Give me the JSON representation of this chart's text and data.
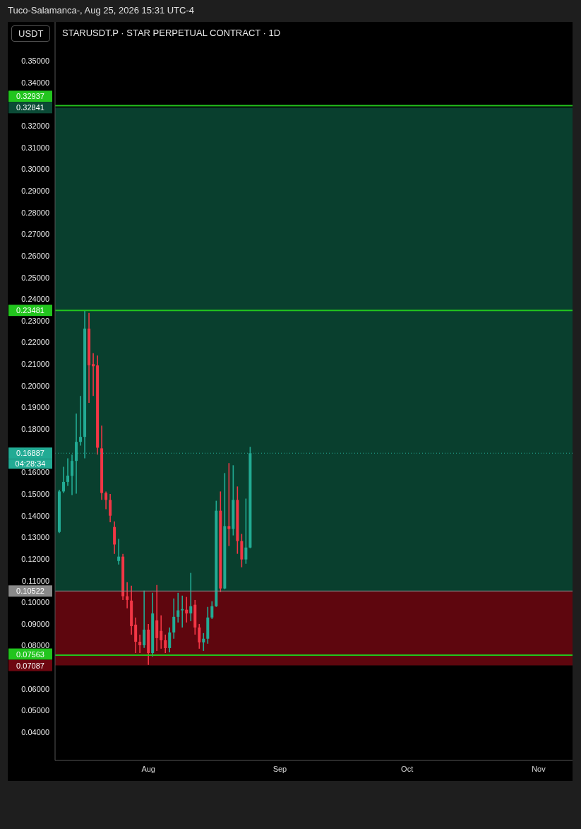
{
  "chart_data": {
    "type": "candlestick",
    "title": "STARUSDT.P · STAR PERPETUAL CONTRACT · 1D",
    "subtitle": "Tuco-Salamanca-, Aug 25, 2026 15:31 UTC-4",
    "ylabel": "USDT",
    "x": [
      "2026-07-11",
      "2026-07-12",
      "2026-07-13",
      "2026-07-14",
      "2026-07-15",
      "2026-07-16",
      "2026-07-17",
      "2026-07-18",
      "2026-07-19",
      "2026-07-20",
      "2026-07-21",
      "2026-07-22",
      "2026-07-23",
      "2026-07-24",
      "2026-07-25",
      "2026-07-26",
      "2026-07-27",
      "2026-07-28",
      "2026-07-29",
      "2026-07-30",
      "2026-07-31",
      "2026-08-01",
      "2026-08-02",
      "2026-08-03",
      "2026-08-04",
      "2026-08-05",
      "2026-08-06",
      "2026-08-07",
      "2026-08-08",
      "2026-08-09",
      "2026-08-10",
      "2026-08-11",
      "2026-08-12",
      "2026-08-13",
      "2026-08-14",
      "2026-08-15",
      "2026-08-16",
      "2026-08-17",
      "2026-08-18",
      "2026-08-19",
      "2026-08-20",
      "2026-08-21",
      "2026-08-22",
      "2026-08-23",
      "2026-08-24",
      "2026-08-25"
    ],
    "ohlc": [
      [
        0.1325,
        0.152,
        0.132,
        0.1512
      ],
      [
        0.1512,
        0.1626,
        0.1505,
        0.1556
      ],
      [
        0.1556,
        0.1665,
        0.1538,
        0.1585
      ],
      [
        0.1584,
        0.1682,
        0.1495,
        0.1653
      ],
      [
        0.1653,
        0.1871,
        0.1502,
        0.1741
      ],
      [
        0.1741,
        0.1953,
        0.1724,
        0.1764
      ],
      [
        0.1764,
        0.2346,
        0.1665,
        0.2264
      ],
      [
        0.2264,
        0.2336,
        0.1921,
        0.2095
      ],
      [
        0.21,
        0.215,
        0.1953,
        0.209
      ],
      [
        0.2094,
        0.214,
        0.1682,
        0.1714
      ],
      [
        0.1711,
        0.1816,
        0.1473,
        0.1505
      ],
      [
        0.1505,
        0.1512,
        0.143,
        0.1473
      ],
      [
        0.1473,
        0.15,
        0.137,
        0.14
      ],
      [
        0.1348,
        0.1374,
        0.1224,
        0.1267
      ],
      [
        0.1191,
        0.1293,
        0.1175,
        0.1211
      ],
      [
        0.1211,
        0.1224,
        0.1011,
        0.1028
      ],
      [
        0.1028,
        0.1093,
        0.0972,
        0.1011
      ],
      [
        0.1008,
        0.1077,
        0.0851,
        0.089
      ],
      [
        0.0897,
        0.093,
        0.0766,
        0.0818
      ],
      [
        0.0818,
        0.0851,
        0.0766,
        0.0802
      ],
      [
        0.0802,
        0.1054,
        0.079,
        0.0874
      ],
      [
        0.0874,
        0.09,
        0.0711,
        0.0766
      ],
      [
        0.0766,
        0.1044,
        0.075,
        0.0949
      ],
      [
        0.0917,
        0.108,
        0.0776,
        0.0835
      ],
      [
        0.0868,
        0.094,
        0.0786,
        0.0825
      ],
      [
        0.0825,
        0.0851,
        0.0766,
        0.0789
      ],
      [
        0.0789,
        0.0884,
        0.0769,
        0.0861
      ],
      [
        0.0861,
        0.1018,
        0.0832,
        0.0933
      ],
      [
        0.0933,
        0.1044,
        0.0907,
        0.0963
      ],
      [
        0.0963,
        0.1031,
        0.0884,
        0.0969
      ],
      [
        0.0966,
        0.1025,
        0.0907,
        0.0949
      ],
      [
        0.0949,
        0.1136,
        0.0913,
        0.0982
      ],
      [
        0.0989,
        0.1011,
        0.0851,
        0.0884
      ],
      [
        0.0884,
        0.09,
        0.0786,
        0.0815
      ],
      [
        0.0815,
        0.0858,
        0.0776,
        0.0832
      ],
      [
        0.0832,
        0.0979,
        0.0809,
        0.093
      ],
      [
        0.093,
        0.1005,
        0.0923,
        0.0982
      ],
      [
        0.0982,
        0.1469,
        0.0979,
        0.1423
      ],
      [
        0.1423,
        0.1512,
        0.1047,
        0.1064
      ],
      [
        0.1064,
        0.1597,
        0.1061,
        0.1352
      ],
      [
        0.1352,
        0.1643,
        0.126,
        0.1339
      ],
      [
        0.1339,
        0.1633,
        0.1309,
        0.1473
      ],
      [
        0.1473,
        0.1535,
        0.1224,
        0.1283
      ],
      [
        0.1283,
        0.1316,
        0.1162,
        0.1198
      ],
      [
        0.1198,
        0.1479,
        0.1178,
        0.1253
      ],
      [
        0.1253,
        0.1718,
        0.125,
        0.16887
      ]
    ],
    "colors": [
      "#22ab94",
      "#22ab94",
      "#22ab94",
      "#22ab94",
      "#22ab94",
      "#22ab94",
      "#22ab94",
      "#f23645",
      "#f23645",
      "#f23645",
      "#f23645",
      "#f23645",
      "#f23645",
      "#f23645",
      "#22ab94",
      "#f23645",
      "#f23645",
      "#f23645",
      "#f23645",
      "#f23645",
      "#22ab94",
      "#f23645",
      "#22ab94",
      "#f23645",
      "#f23645",
      "#f23645",
      "#22ab94",
      "#22ab94",
      "#22ab94",
      "#22ab94",
      "#f23645",
      "#22ab94",
      "#f23645",
      "#f23645",
      "#22ab94",
      "#22ab94",
      "#22ab94",
      "#22ab94",
      "#f23645",
      "#22ab94",
      "#f23645",
      "#22ab94",
      "#f23645",
      "#f23645",
      "#22ab94",
      "#22ab94"
    ],
    "xlim": [
      "2026-07-10",
      "2026-11-09"
    ],
    "xticks": [
      {
        "value": "2026-08-01",
        "label": "Aug"
      },
      {
        "value": "2026-09-01",
        "label": "Sep"
      },
      {
        "value": "2026-10-01",
        "label": "Oct"
      },
      {
        "value": "2026-11-01",
        "label": "Nov"
      }
    ],
    "ylim": [
      0.027,
      0.368
    ],
    "yticks": [
      {
        "value": 0.04,
        "label": "0.04000"
      },
      {
        "value": 0.05,
        "label": "0.05000"
      },
      {
        "value": 0.06,
        "label": "0.06000"
      },
      {
        "value": 0.08,
        "label": "0.08000"
      },
      {
        "value": 0.09,
        "label": "0.09000"
      },
      {
        "value": 0.1,
        "label": "0.10000"
      },
      {
        "value": 0.11,
        "label": "0.11000"
      },
      {
        "value": 0.12,
        "label": "0.12000"
      },
      {
        "value": 0.13,
        "label": "0.13000"
      },
      {
        "value": 0.14,
        "label": "0.14000"
      },
      {
        "value": 0.15,
        "label": "0.15000"
      },
      {
        "value": 0.16,
        "label": "0.16000"
      },
      {
        "value": 0.18,
        "label": "0.18000"
      },
      {
        "value": 0.19,
        "label": "0.19000"
      },
      {
        "value": 0.2,
        "label": "0.20000"
      },
      {
        "value": 0.21,
        "label": "0.21000"
      },
      {
        "value": 0.22,
        "label": "0.22000"
      },
      {
        "value": 0.23,
        "label": "0.23000"
      },
      {
        "value": 0.24,
        "label": "0.24000"
      },
      {
        "value": 0.25,
        "label": "0.25000"
      },
      {
        "value": 0.26,
        "label": "0.26000"
      },
      {
        "value": 0.27,
        "label": "0.27000"
      },
      {
        "value": 0.28,
        "label": "0.28000"
      },
      {
        "value": 0.29,
        "label": "0.29000"
      },
      {
        "value": 0.3,
        "label": "0.30000"
      },
      {
        "value": 0.31,
        "label": "0.31000"
      },
      {
        "value": 0.32,
        "label": "0.32000"
      },
      {
        "value": 0.34,
        "label": "0.34000"
      },
      {
        "value": 0.35,
        "label": "0.35000"
      }
    ],
    "bands": [
      {
        "axis": "y",
        "from": 0.10522,
        "to": 0.32841,
        "label": "0.32841",
        "color": "#0b4a36"
      },
      {
        "axis": "y",
        "from": 0.07087,
        "to": 0.10522,
        "label": "0.07087",
        "color": "#6e0710"
      }
    ],
    "ref_lines": [
      {
        "axis": "y",
        "value": 0.32937,
        "label": "0.32937",
        "color": "#22c51e",
        "line_style": "solid"
      },
      {
        "axis": "y",
        "value": 0.23481,
        "label": "0.23481",
        "color": "#22c51e",
        "line_style": "solid"
      },
      {
        "axis": "y",
        "value": 0.07563,
        "label": "0.07563",
        "color": "#22c51e",
        "line_style": "solid"
      },
      {
        "axis": "y",
        "value": 0.10522,
        "label": "0.10522",
        "color": "#8a8a8a",
        "line_style": "solid"
      },
      {
        "axis": "y",
        "value": 0.16887,
        "label": "0.16887",
        "color": "#22ab94",
        "line_style": "dotted"
      }
    ],
    "annotations": [
      "04:28:34"
    ],
    "grid": false
  }
}
